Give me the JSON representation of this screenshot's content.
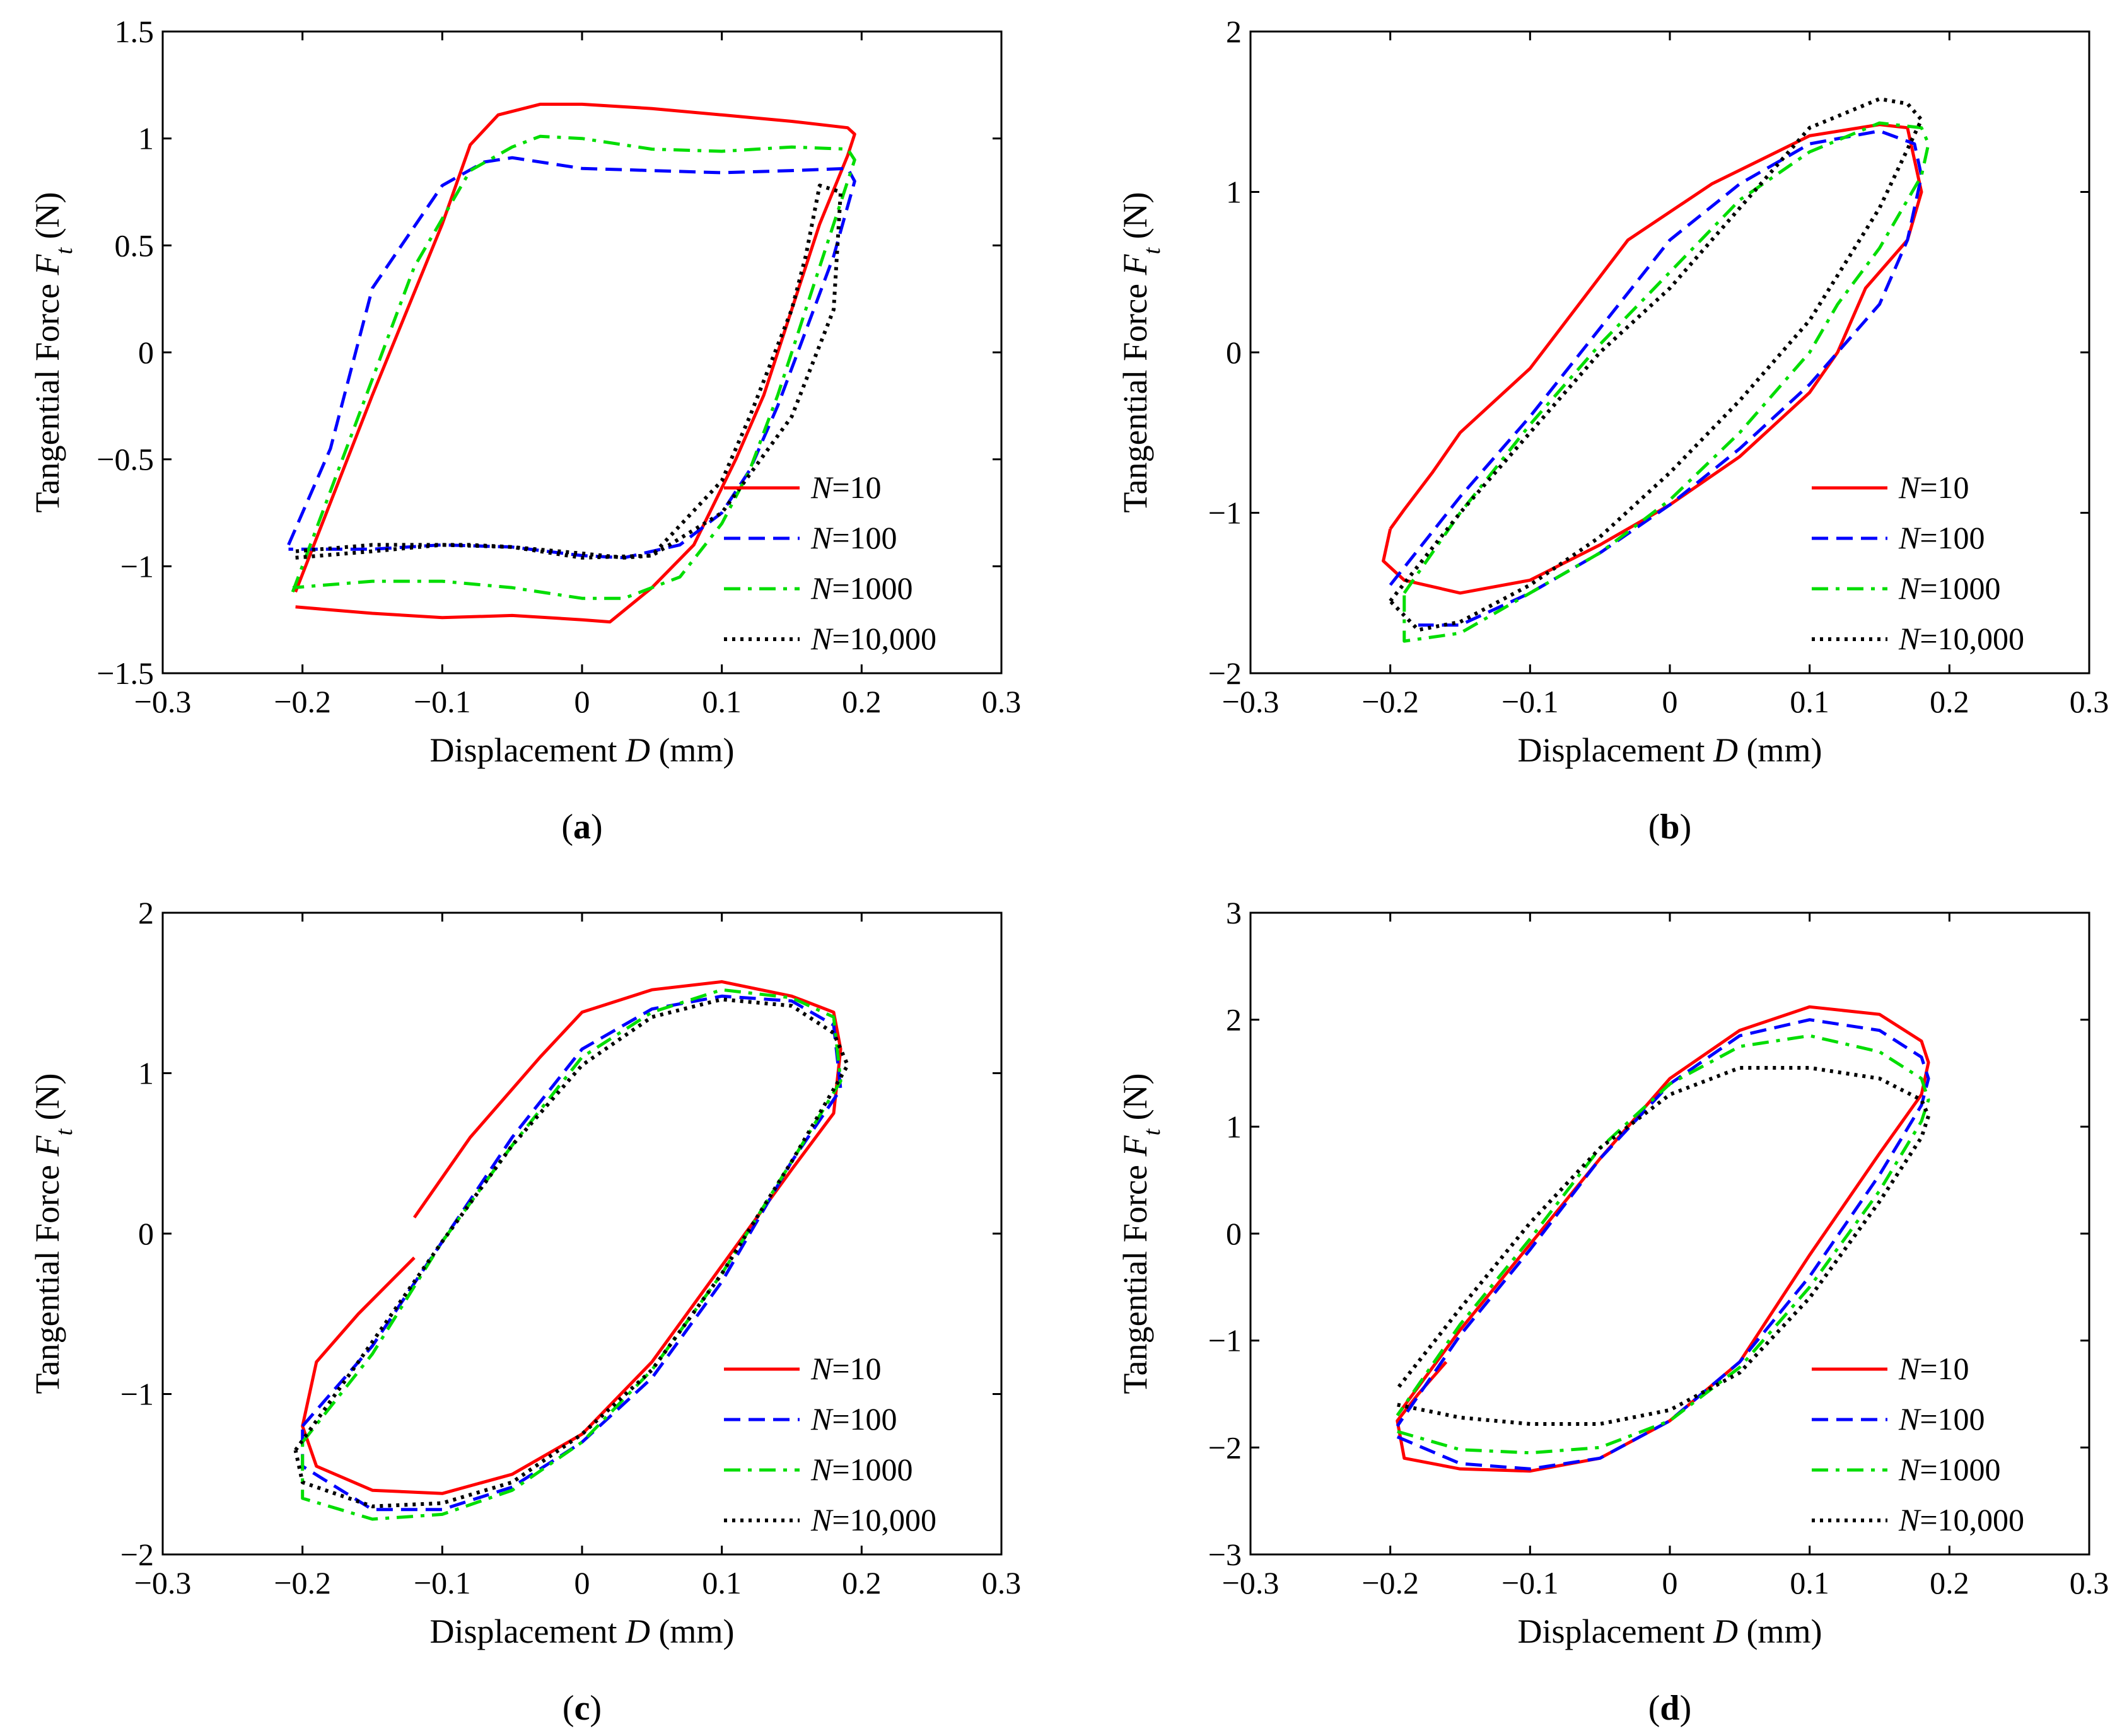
{
  "figure": {
    "panels": [
      "a",
      "b",
      "c",
      "d"
    ]
  },
  "chart_data": [
    {
      "panel_label": "a",
      "type": "line",
      "xlabel": "Displacement D (mm)",
      "ylabel": "Tangential Force Ft (N)",
      "xlim": [
        -0.3,
        0.3
      ],
      "ylim": [
        -1.5,
        1.5
      ],
      "xticks": [
        -0.3,
        -0.2,
        -0.1,
        0,
        0.1,
        0.2,
        0.3
      ],
      "yticks": [
        -1.5,
        -1,
        -0.5,
        0,
        0.5,
        1,
        1.5
      ],
      "xtick_labels": [
        "−0.3",
        "−0.2",
        "−0.1",
        "0",
        "0.1",
        "0.2",
        "0.3"
      ],
      "ytick_labels": [
        "−1.5",
        "−1",
        "−0.5",
        "0",
        "0.5",
        "1",
        "1.5"
      ],
      "legend_position": "lower-right",
      "series": [
        {
          "name": "N=10",
          "legend_var": "N",
          "legend_value": "=10",
          "color": "#ff0000",
          "style": "solid",
          "x": [
            -0.205,
            -0.15,
            -0.1,
            -0.08,
            -0.06,
            -0.03,
            0,
            0.05,
            0.1,
            0.15,
            0.19,
            0.195,
            0.19,
            0.17,
            0.15,
            0.13,
            0.11,
            0.08,
            0.05,
            0.02,
            0,
            -0.05,
            -0.1,
            -0.15,
            -0.205
          ],
          "y": [
            -1.12,
            -0.2,
            0.6,
            0.97,
            1.11,
            1.16,
            1.16,
            1.14,
            1.11,
            1.08,
            1.05,
            1.02,
            0.92,
            0.6,
            0.2,
            -0.2,
            -0.5,
            -0.9,
            -1.1,
            -1.26,
            -1.25,
            -1.23,
            -1.24,
            -1.22,
            -1.19
          ]
        },
        {
          "name": "N=100",
          "legend_var": "N",
          "legend_value": "=100",
          "color": "#0000ff",
          "style": "dashed",
          "x": [
            -0.21,
            -0.18,
            -0.15,
            -0.1,
            -0.07,
            -0.05,
            0,
            0.05,
            0.1,
            0.15,
            0.19,
            0.195,
            0.18,
            0.16,
            0.14,
            0.12,
            0.1,
            0.07,
            0.03,
            0,
            -0.05,
            -0.1,
            -0.15,
            -0.21
          ],
          "y": [
            -0.9,
            -0.45,
            0.3,
            0.78,
            0.89,
            0.91,
            0.86,
            0.85,
            0.84,
            0.85,
            0.86,
            0.8,
            0.45,
            0.1,
            -0.25,
            -0.55,
            -0.75,
            -0.9,
            -0.96,
            -0.95,
            -0.91,
            -0.9,
            -0.92,
            -0.92
          ]
        },
        {
          "name": "N=1000",
          "legend_var": "N",
          "legend_value": "=1000",
          "color": "#00dd00",
          "style": "dashdot",
          "x": [
            -0.207,
            -0.16,
            -0.12,
            -0.08,
            -0.05,
            -0.03,
            0,
            0.05,
            0.1,
            0.15,
            0.19,
            0.195,
            0.18,
            0.16,
            0.14,
            0.12,
            0.1,
            0.07,
            0.03,
            0,
            -0.05,
            -0.1,
            -0.15,
            -0.207
          ],
          "y": [
            -1.12,
            -0.3,
            0.4,
            0.85,
            0.96,
            1.01,
            1.0,
            0.95,
            0.94,
            0.96,
            0.95,
            0.9,
            0.6,
            0.2,
            -0.2,
            -0.55,
            -0.8,
            -1.05,
            -1.15,
            -1.15,
            -1.1,
            -1.07,
            -1.07,
            -1.1
          ]
        },
        {
          "name": "N=10,000",
          "legend_var": "N",
          "legend_value": "=10,000",
          "color": "#000000",
          "style": "dotted",
          "x": [
            -0.205,
            -0.15,
            -0.1,
            -0.08,
            -0.05,
            0,
            0.05,
            0.1,
            0.15,
            0.18,
            0.185,
            0.17,
            0.16,
            0.15,
            0.12,
            0.1,
            0.05,
            0.03,
            0,
            -0.05,
            -0.1,
            -0.15,
            -0.205
          ],
          "y": [
            -0.96,
            -0.93,
            -0.9,
            -0.9,
            -0.91,
            -0.96,
            -0.95,
            -0.75,
            -0.3,
            0.2,
            0.75,
            0.78,
            0.45,
            0.2,
            -0.3,
            -0.6,
            -0.95,
            -0.96,
            -0.94,
            -0.91,
            -0.9,
            -0.9,
            -0.93
          ]
        }
      ]
    },
    {
      "panel_label": "b",
      "type": "line",
      "xlabel": "Displacement D (mm)",
      "ylabel": "Tangential Force Ft (N)",
      "xlim": [
        -0.3,
        0.3
      ],
      "ylim": [
        -2,
        2
      ],
      "xticks": [
        -0.3,
        -0.2,
        -0.1,
        0,
        0.1,
        0.2,
        0.3
      ],
      "yticks": [
        -2,
        -1,
        0,
        1,
        2
      ],
      "xtick_labels": [
        "−0.3",
        "−0.2",
        "−0.1",
        "0",
        "0.1",
        "0.2",
        "0.3"
      ],
      "ytick_labels": [
        "−2",
        "−1",
        "0",
        "1",
        "2"
      ],
      "legend_position": "lower-right",
      "series": [
        {
          "name": "N=10",
          "legend_var": "N",
          "legend_value": "=10",
          "color": "#ff0000",
          "style": "solid",
          "x": [
            -0.2,
            -0.19,
            -0.17,
            -0.15,
            -0.1,
            -0.03,
            0.03,
            0.1,
            0.15,
            0.17,
            0.175,
            0.18,
            0.17,
            0.14,
            0.12,
            0.1,
            0.05,
            0,
            -0.05,
            -0.1,
            -0.15,
            -0.19,
            -0.205,
            -0.2
          ],
          "y": [
            -1.1,
            -0.98,
            -0.75,
            -0.5,
            -0.1,
            0.7,
            1.05,
            1.35,
            1.42,
            1.4,
            1.2,
            1.0,
            0.7,
            0.4,
            0.0,
            -0.25,
            -0.65,
            -0.95,
            -1.2,
            -1.42,
            -1.5,
            -1.42,
            -1.3,
            -1.1
          ]
        },
        {
          "name": "N=100",
          "legend_var": "N",
          "legend_value": "=100",
          "color": "#0000ff",
          "style": "dashed",
          "x": [
            -0.2,
            -0.15,
            -0.1,
            -0.05,
            0,
            0.05,
            0.1,
            0.15,
            0.175,
            0.18,
            0.17,
            0.15,
            0.12,
            0.1,
            0.05,
            0,
            -0.05,
            -0.1,
            -0.15,
            -0.18
          ],
          "y": [
            -1.45,
            -0.9,
            -0.4,
            0.15,
            0.7,
            1.05,
            1.3,
            1.38,
            1.3,
            1.1,
            0.7,
            0.3,
            0.0,
            -0.2,
            -0.6,
            -0.95,
            -1.25,
            -1.5,
            -1.7,
            -1.7
          ]
        },
        {
          "name": "N=1000",
          "legend_var": "N",
          "legend_value": "=1000",
          "color": "#00dd00",
          "style": "dashdot",
          "x": [
            -0.19,
            -0.15,
            -0.1,
            -0.05,
            0,
            0.05,
            0.1,
            0.15,
            0.18,
            0.185,
            0.18,
            0.15,
            0.12,
            0.1,
            0.05,
            0,
            -0.05,
            -0.1,
            -0.15,
            -0.19,
            -0.19
          ],
          "y": [
            -1.5,
            -1.0,
            -0.45,
            0.05,
            0.5,
            0.95,
            1.25,
            1.43,
            1.4,
            1.3,
            1.1,
            0.65,
            0.3,
            0.0,
            -0.5,
            -0.92,
            -1.25,
            -1.5,
            -1.75,
            -1.8,
            -1.5
          ]
        },
        {
          "name": "N=10,000",
          "legend_var": "N",
          "legend_value": "=10,000",
          "color": "#000000",
          "style": "dotted",
          "x": [
            -0.2,
            -0.15,
            -0.1,
            -0.05,
            0,
            0.05,
            0.1,
            0.15,
            0.17,
            0.18,
            0.15,
            0.1,
            0.05,
            0,
            -0.05,
            -0.1,
            -0.15,
            -0.18,
            -0.2
          ],
          "y": [
            -1.55,
            -1.0,
            -0.5,
            0.0,
            0.4,
            0.9,
            1.4,
            1.58,
            1.55,
            1.45,
            0.9,
            0.2,
            -0.3,
            -0.75,
            -1.15,
            -1.45,
            -1.68,
            -1.73,
            -1.55
          ]
        }
      ]
    },
    {
      "panel_label": "c",
      "type": "line",
      "xlabel": "Displacement D (mm)",
      "ylabel": "Tangential Force Ft (N)",
      "xlim": [
        -0.3,
        0.3
      ],
      "ylim": [
        -2,
        2
      ],
      "xticks": [
        -0.3,
        -0.2,
        -0.1,
        0,
        0.1,
        0.2,
        0.3
      ],
      "yticks": [
        -2,
        -1,
        0,
        1,
        2
      ],
      "xtick_labels": [
        "−0.3",
        "−0.2",
        "−0.1",
        "0",
        "0.1",
        "0.2",
        "0.3"
      ],
      "ytick_labels": [
        "−2",
        "−1",
        "0",
        "1",
        "2"
      ],
      "legend_position": "lower-right",
      "series": [
        {
          "name": "N=10",
          "legend_var": "N",
          "legend_value": "=10",
          "color": "#ff0000",
          "style": "solid",
          "x": [
            -0.12,
            -0.08,
            -0.03,
            0,
            0.05,
            0.1,
            0.15,
            0.18,
            0.185,
            0.18,
            0.15,
            0.1,
            0.05,
            0,
            -0.05,
            -0.1,
            -0.15,
            -0.19,
            -0.2,
            -0.19,
            -0.16,
            -0.12
          ],
          "y": [
            0.1,
            0.6,
            1.1,
            1.38,
            1.52,
            1.57,
            1.48,
            1.38,
            1.15,
            0.75,
            0.4,
            -0.2,
            -0.8,
            -1.25,
            -1.5,
            -1.62,
            -1.6,
            -1.45,
            -1.2,
            -0.8,
            -0.5,
            -0.15
          ]
        },
        {
          "name": "N=100",
          "legend_var": "N",
          "legend_value": "=100",
          "color": "#0000ff",
          "style": "dashed",
          "x": [
            -0.2,
            -0.15,
            -0.1,
            -0.05,
            0,
            0.05,
            0.1,
            0.15,
            0.18,
            0.185,
            0.15,
            0.1,
            0.05,
            0,
            -0.05,
            -0.1,
            -0.15,
            -0.2,
            -0.2
          ],
          "y": [
            -1.2,
            -0.7,
            -0.05,
            0.6,
            1.15,
            1.4,
            1.48,
            1.45,
            1.3,
            0.9,
            0.45,
            -0.3,
            -0.9,
            -1.3,
            -1.58,
            -1.72,
            -1.72,
            -1.45,
            -1.2
          ]
        },
        {
          "name": "N=1000",
          "legend_var": "N",
          "legend_value": "=1000",
          "color": "#00dd00",
          "style": "dashdot",
          "x": [
            -0.2,
            -0.15,
            -0.1,
            -0.05,
            0,
            0.05,
            0.1,
            0.15,
            0.18,
            0.185,
            0.15,
            0.1,
            0.05,
            0,
            -0.05,
            -0.1,
            -0.15,
            -0.2,
            -0.2
          ],
          "y": [
            -1.3,
            -0.75,
            -0.05,
            0.55,
            1.1,
            1.38,
            1.52,
            1.47,
            1.35,
            0.95,
            0.45,
            -0.25,
            -0.85,
            -1.3,
            -1.6,
            -1.75,
            -1.78,
            -1.65,
            -1.3
          ]
        },
        {
          "name": "N=10,000",
          "legend_var": "N",
          "legend_value": "=10,000",
          "color": "#000000",
          "style": "dotted",
          "x": [
            -0.205,
            -0.16,
            -0.1,
            -0.05,
            0,
            0.05,
            0.1,
            0.15,
            0.18,
            0.19,
            0.17,
            0.15,
            0.1,
            0.05,
            0,
            -0.05,
            -0.1,
            -0.15,
            -0.2,
            -0.205
          ],
          "y": [
            -1.35,
            -0.8,
            -0.05,
            0.55,
            1.05,
            1.35,
            1.46,
            1.42,
            1.25,
            1.05,
            0.75,
            0.45,
            -0.25,
            -0.85,
            -1.25,
            -1.55,
            -1.68,
            -1.7,
            -1.55,
            -1.35
          ]
        }
      ]
    },
    {
      "panel_label": "d",
      "type": "line",
      "xlabel": "Displacement D (mm)",
      "ylabel": "Tangential Force Ft (N)",
      "xlim": [
        -0.3,
        0.3
      ],
      "ylim": [
        -3,
        3
      ],
      "xticks": [
        -0.3,
        -0.2,
        -0.1,
        0,
        0.1,
        0.2,
        0.3
      ],
      "yticks": [
        -3,
        -2,
        -1,
        0,
        1,
        2,
        3
      ],
      "xtick_labels": [
        "−0.3",
        "−0.2",
        "−0.1",
        "0",
        "0.1",
        "0.2",
        "0.3"
      ],
      "ytick_labels": [
        "−3",
        "−2",
        "−1",
        "0",
        "1",
        "2",
        "3"
      ],
      "legend_position": "lower-right",
      "series": [
        {
          "name": "N=10",
          "legend_var": "N",
          "legend_value": "=10",
          "color": "#ff0000",
          "style": "solid",
          "x": [
            -0.16,
            -0.18,
            -0.195,
            -0.19,
            -0.15,
            -0.1,
            -0.05,
            0,
            0.05,
            0.1,
            0.15,
            0.18,
            0.185,
            0.18,
            0.15,
            0.1,
            0.05,
            0,
            -0.05,
            -0.1,
            -0.15,
            -0.195
          ],
          "y": [
            -1.2,
            -1.5,
            -1.75,
            -2.1,
            -2.2,
            -2.22,
            -2.1,
            -1.75,
            -1.2,
            -0.2,
            0.75,
            1.3,
            1.6,
            1.8,
            2.05,
            2.12,
            1.9,
            1.45,
            0.7,
            -0.1,
            -0.9,
            -1.7
          ]
        },
        {
          "name": "N=100",
          "legend_var": "N",
          "legend_value": "=100",
          "color": "#0000ff",
          "style": "dashed",
          "x": [
            -0.195,
            -0.15,
            -0.1,
            -0.05,
            0,
            0.05,
            0.1,
            0.15,
            0.18,
            0.185,
            0.18,
            0.15,
            0.1,
            0.05,
            0,
            -0.05,
            -0.1,
            -0.15,
            -0.195
          ],
          "y": [
            -1.9,
            -2.15,
            -2.2,
            -2.1,
            -1.75,
            -1.2,
            -0.4,
            0.55,
            1.2,
            1.45,
            1.65,
            1.9,
            2.0,
            1.85,
            1.4,
            0.7,
            -0.15,
            -0.95,
            -1.8
          ]
        },
        {
          "name": "N=1000",
          "legend_var": "N",
          "legend_value": "=1000",
          "color": "#00dd00",
          "style": "dashdot",
          "x": [
            -0.195,
            -0.15,
            -0.1,
            -0.05,
            0,
            0.05,
            0.1,
            0.15,
            0.18,
            0.185,
            0.18,
            0.15,
            0.1,
            0.05,
            0,
            -0.05,
            -0.1,
            -0.15,
            -0.195
          ],
          "y": [
            -1.85,
            -2.02,
            -2.05,
            -2.0,
            -1.75,
            -1.25,
            -0.5,
            0.4,
            1.05,
            1.25,
            1.45,
            1.7,
            1.85,
            1.75,
            1.4,
            0.8,
            -0.05,
            -0.85,
            -1.7
          ]
        },
        {
          "name": "N=10,000",
          "legend_var": "N",
          "legend_value": "=10,000",
          "color": "#000000",
          "style": "dotted",
          "x": [
            -0.195,
            -0.15,
            -0.1,
            -0.05,
            0,
            0.05,
            0.1,
            0.15,
            0.18,
            0.185,
            0.18,
            0.15,
            0.1,
            0.05,
            0,
            -0.05,
            -0.1,
            -0.15,
            -0.195
          ],
          "y": [
            -1.6,
            -1.72,
            -1.78,
            -1.78,
            -1.65,
            -1.3,
            -0.6,
            0.3,
            0.9,
            1.1,
            1.25,
            1.45,
            1.55,
            1.55,
            1.3,
            0.8,
            0.1,
            -0.7,
            -1.45
          ]
        }
      ]
    }
  ]
}
